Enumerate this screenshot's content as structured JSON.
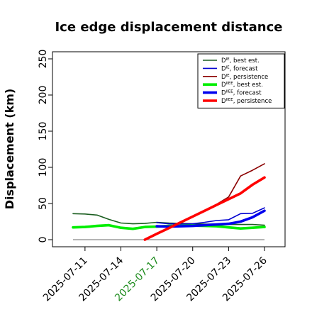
{
  "chart_data": {
    "type": "line",
    "title": "Ice edge displacement distance",
    "ylabel": "Displacement (km)",
    "xlabel": "",
    "ylim": [
      0,
      250
    ],
    "yticks": [
      "0",
      "50",
      "100",
      "150",
      "200",
      "250"
    ],
    "xlim": [
      "2025-07-09",
      "2025-07-28"
    ],
    "xticks": [
      {
        "date": "2025-07-11",
        "label": "2025-07-11",
        "color": "#000000"
      },
      {
        "date": "2025-07-14",
        "label": "2025-07-14",
        "color": "#000000"
      },
      {
        "date": "2025-07-17",
        "label": "2025-07-17",
        "color": "#1e8c1e"
      },
      {
        "date": "2025-07-20",
        "label": "2025-07-20",
        "color": "#000000"
      },
      {
        "date": "2025-07-23",
        "label": "2025-07-23",
        "color": "#000000"
      },
      {
        "date": "2025-07-26",
        "label": "2025-07-26",
        "color": "#000000"
      }
    ],
    "legend_position": "top-right",
    "grid": false,
    "series": [
      {
        "name": "D^IE, best est.",
        "legend_base": "D",
        "legend_sup": "IE",
        "legend_rest": ", best est.",
        "color": "#1b5e20",
        "width": 1.6,
        "x": [
          "2025-07-10",
          "2025-07-11",
          "2025-07-12",
          "2025-07-13",
          "2025-07-14",
          "2025-07-15",
          "2025-07-16",
          "2025-07-17",
          "2025-07-18",
          "2025-07-19",
          "2025-07-20",
          "2025-07-21",
          "2025-07-22",
          "2025-07-23",
          "2025-07-24",
          "2025-07-25",
          "2025-07-26"
        ],
        "y": [
          36,
          35.5,
          34,
          28,
          23,
          22,
          22.5,
          24,
          23,
          22.5,
          22,
          21.5,
          21.5,
          21,
          21,
          21,
          20
        ]
      },
      {
        "name": "D^IE, forecast",
        "legend_base": "D",
        "legend_sup": "IE",
        "legend_rest": ", forecast",
        "color": "#0000d0",
        "width": 1.6,
        "x": [
          "2025-07-17",
          "2025-07-18",
          "2025-07-19",
          "2025-07-20",
          "2025-07-21",
          "2025-07-22",
          "2025-07-23",
          "2025-07-24",
          "2025-07-25",
          "2025-07-26"
        ],
        "y": [
          23.5,
          22,
          21.5,
          22,
          24,
          26.5,
          27.5,
          36,
          36.5,
          44
        ]
      },
      {
        "name": "D^IE, persistence",
        "legend_base": "D",
        "legend_sup": "IE",
        "legend_rest": ", persistence",
        "color": "#8b0000",
        "width": 1.6,
        "x": [
          "2025-07-16",
          "2025-07-17",
          "2025-07-18",
          "2025-07-19",
          "2025-07-20",
          "2025-07-21",
          "2025-07-22",
          "2025-07-23",
          "2025-07-24",
          "2025-07-25",
          "2025-07-26"
        ],
        "y": [
          0,
          8,
          16,
          24,
          32,
          40,
          49,
          59,
          88,
          96,
          105
        ]
      },
      {
        "name": "D^IIEE, best est.",
        "legend_base": "D",
        "legend_sup": "IIEE",
        "legend_rest": ", best est.",
        "color": "#00ee00",
        "width": 3.6,
        "x": [
          "2025-07-10",
          "2025-07-11",
          "2025-07-12",
          "2025-07-13",
          "2025-07-14",
          "2025-07-15",
          "2025-07-16",
          "2025-07-17",
          "2025-07-18",
          "2025-07-19",
          "2025-07-20",
          "2025-07-21",
          "2025-07-22",
          "2025-07-23",
          "2025-07-24",
          "2025-07-25",
          "2025-07-26"
        ],
        "y": [
          17,
          17.5,
          19,
          20,
          16.5,
          15,
          17.5,
          18,
          19,
          19,
          19.5,
          19,
          18.5,
          17,
          15.5,
          16.5,
          17.5
        ]
      },
      {
        "name": "D^IIEE, forecast",
        "legend_base": "D",
        "legend_sup": "IIEE",
        "legend_rest": ", forecast",
        "color": "#0000ee",
        "width": 3.6,
        "x": [
          "2025-07-17",
          "2025-07-18",
          "2025-07-19",
          "2025-07-20",
          "2025-07-21",
          "2025-07-22",
          "2025-07-23",
          "2025-07-24",
          "2025-07-25",
          "2025-07-26"
        ],
        "y": [
          18.5,
          18,
          18.5,
          19,
          20,
          21,
          22,
          25,
          31,
          40
        ]
      },
      {
        "name": "D^IIEE, persistence",
        "legend_base": "D",
        "legend_sup": "IIEE",
        "legend_rest": ", persistence",
        "color": "#ff0000",
        "width": 3.6,
        "x": [
          "2025-07-16",
          "2025-07-17",
          "2025-07-18",
          "2025-07-19",
          "2025-07-20",
          "2025-07-21",
          "2025-07-22",
          "2025-07-23",
          "2025-07-24",
          "2025-07-25",
          "2025-07-26"
        ],
        "y": [
          0,
          8,
          16,
          24,
          32,
          40,
          48,
          56,
          64,
          76,
          86
        ]
      }
    ],
    "reference_lines": [
      {
        "y": 0,
        "x_start": "2025-07-10",
        "x_end": "2025-07-26",
        "color": "#888888"
      }
    ]
  }
}
